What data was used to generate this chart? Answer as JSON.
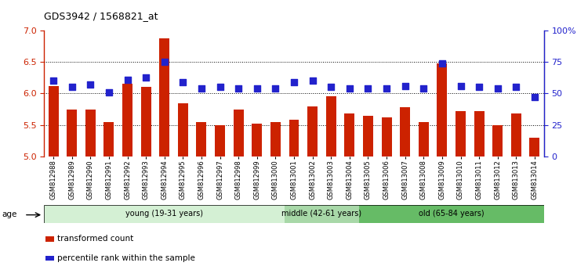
{
  "title": "GDS3942 / 1568821_at",
  "samples": [
    "GSM812988",
    "GSM812989",
    "GSM812990",
    "GSM812991",
    "GSM812992",
    "GSM812993",
    "GSM812994",
    "GSM812995",
    "GSM812996",
    "GSM812997",
    "GSM812998",
    "GSM812999",
    "GSM813000",
    "GSM813001",
    "GSM813002",
    "GSM813003",
    "GSM813004",
    "GSM813005",
    "GSM813006",
    "GSM813007",
    "GSM813008",
    "GSM813009",
    "GSM813010",
    "GSM813011",
    "GSM813012",
    "GSM813013",
    "GSM813014"
  ],
  "bar_values": [
    6.12,
    5.75,
    5.75,
    5.55,
    6.15,
    6.1,
    6.88,
    5.85,
    5.55,
    5.5,
    5.75,
    5.52,
    5.55,
    5.58,
    5.8,
    5.96,
    5.68,
    5.65,
    5.62,
    5.78,
    5.55,
    6.48,
    5.72,
    5.72,
    5.5,
    5.68,
    5.3
  ],
  "dot_values_pct": [
    60,
    55,
    57,
    51,
    61,
    63,
    75,
    59,
    54,
    55,
    54,
    54,
    54,
    59,
    60,
    55,
    54,
    54,
    54,
    56,
    54,
    74,
    56,
    55,
    54,
    55,
    47
  ],
  "bar_color": "#cc2200",
  "dot_color": "#2222cc",
  "ylim_left": [
    5.0,
    7.0
  ],
  "ylim_right": [
    0,
    100
  ],
  "yticks_left": [
    5.0,
    5.5,
    6.0,
    6.5,
    7.0
  ],
  "yticks_right": [
    0,
    25,
    50,
    75,
    100
  ],
  "ytick_labels_right": [
    "0",
    "25",
    "50",
    "75",
    "100%"
  ],
  "hlines": [
    5.5,
    6.0,
    6.5
  ],
  "groups": [
    {
      "label": "young (19-31 years)",
      "start": 0,
      "end": 13,
      "color": "#d4f0d4"
    },
    {
      "label": "middle (42-61 years)",
      "start": 13,
      "end": 17,
      "color": "#a8d8a8"
    },
    {
      "label": "old (65-84 years)",
      "start": 17,
      "end": 27,
      "color": "#66bb66"
    }
  ],
  "age_label": "age",
  "legend_items": [
    {
      "color": "#cc2200",
      "label": "transformed count",
      "marker": "s"
    },
    {
      "color": "#2222cc",
      "label": "percentile rank within the sample",
      "marker": "s"
    }
  ],
  "bar_width": 0.55,
  "dot_size": 28,
  "background_plot": "#ffffff",
  "fig_bg": "#ffffff"
}
